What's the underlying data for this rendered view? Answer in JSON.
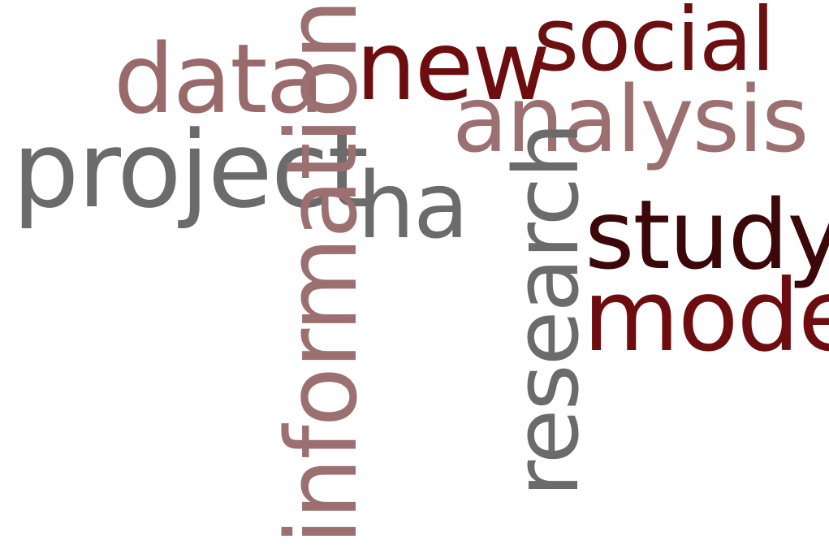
{
  "wordcloud": {
    "words": [
      {
        "id": "social",
        "text": "social",
        "color": "#6b0f10"
      },
      {
        "id": "new",
        "text": "new",
        "color": "#6e0d0f"
      },
      {
        "id": "data",
        "text": "data",
        "color": "#9a6a6b"
      },
      {
        "id": "analysis",
        "text": "analysis",
        "color": "#9c6f70"
      },
      {
        "id": "project",
        "text": "project",
        "color": "#6b6b6b"
      },
      {
        "id": "ha",
        "text": "ha",
        "color": "#6b6b6b"
      },
      {
        "id": "study",
        "text": "study",
        "color": "#3c0708"
      },
      {
        "id": "model",
        "text": "model",
        "color": "#6e0d0f"
      },
      {
        "id": "information",
        "text": "information",
        "color": "#9c6f70"
      },
      {
        "id": "research",
        "text": "research",
        "color": "#6b6b6b"
      }
    ]
  }
}
